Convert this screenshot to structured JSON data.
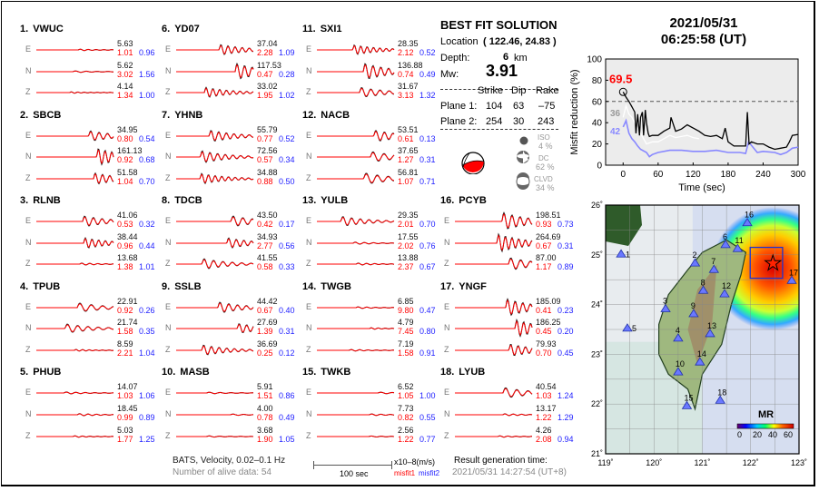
{
  "stations": [
    {
      "num": "1.",
      "name": "VWUC",
      "comps": [
        {
          "c": "E",
          "amp": "5.63",
          "m1": "1.01",
          "m2": "0.96"
        },
        {
          "c": "N",
          "amp": "5.62",
          "m1": "3.02",
          "m2": "1.56"
        },
        {
          "c": "Z",
          "amp": "4.14",
          "m1": "1.34",
          "m2": "1.00"
        }
      ]
    },
    {
      "num": "2.",
      "name": "SBCB",
      "comps": [
        {
          "c": "E",
          "amp": "34.95",
          "m1": "0.80",
          "m2": "0.54"
        },
        {
          "c": "N",
          "amp": "161.13",
          "m1": "0.92",
          "m2": "0.68"
        },
        {
          "c": "Z",
          "amp": "51.58",
          "m1": "1.04",
          "m2": "0.70"
        }
      ]
    },
    {
      "num": "3.",
      "name": "RLNB",
      "comps": [
        {
          "c": "E",
          "amp": "41.06",
          "m1": "0.53",
          "m2": "0.32"
        },
        {
          "c": "N",
          "amp": "38.44",
          "m1": "0.96",
          "m2": "0.44"
        },
        {
          "c": "Z",
          "amp": "13.68",
          "m1": "1.38",
          "m2": "1.01"
        }
      ]
    },
    {
      "num": "4.",
      "name": "TPUB",
      "comps": [
        {
          "c": "E",
          "amp": "22.91",
          "m1": "0.92",
          "m2": "0.26"
        },
        {
          "c": "N",
          "amp": "21.74",
          "m1": "1.58",
          "m2": "0.35"
        },
        {
          "c": "Z",
          "amp": "8.59",
          "m1": "2.21",
          "m2": "1.04"
        }
      ]
    },
    {
      "num": "5.",
      "name": "PHUB",
      "comps": [
        {
          "c": "E",
          "amp": "14.07",
          "m1": "1.03",
          "m2": "1.06"
        },
        {
          "c": "N",
          "amp": "18.45",
          "m1": "0.99",
          "m2": "0.89"
        },
        {
          "c": "Z",
          "amp": "5.03",
          "m1": "1.77",
          "m2": "1.25"
        }
      ]
    },
    {
      "num": "6.",
      "name": "YD07",
      "comps": [
        {
          "c": "E",
          "amp": "37.04",
          "m1": "2.28",
          "m2": "1.09"
        },
        {
          "c": "N",
          "amp": "117.53",
          "m1": "0.47",
          "m2": "0.28"
        },
        {
          "c": "Z",
          "amp": "33.02",
          "m1": "1.95",
          "m2": "1.02"
        }
      ]
    },
    {
      "num": "7.",
      "name": "YHNB",
      "comps": [
        {
          "c": "E",
          "amp": "55.79",
          "m1": "0.77",
          "m2": "0.52"
        },
        {
          "c": "N",
          "amp": "72.56",
          "m1": "0.57",
          "m2": "0.34"
        },
        {
          "c": "Z",
          "amp": "34.88",
          "m1": "0.88",
          "m2": "0.50"
        }
      ]
    },
    {
      "num": "8.",
      "name": "TDCB",
      "comps": [
        {
          "c": "E",
          "amp": "43.50",
          "m1": "0.42",
          "m2": "0.17"
        },
        {
          "c": "N",
          "amp": "34.93",
          "m1": "2.77",
          "m2": "0.56"
        },
        {
          "c": "Z",
          "amp": "41.55",
          "m1": "0.58",
          "m2": "0.33"
        }
      ]
    },
    {
      "num": "9.",
      "name": "SSLB",
      "comps": [
        {
          "c": "E",
          "amp": "44.42",
          "m1": "0.67",
          "m2": "0.40"
        },
        {
          "c": "N",
          "amp": "27.69",
          "m1": "1.39",
          "m2": "0.31"
        },
        {
          "c": "Z",
          "amp": "36.69",
          "m1": "0.25",
          "m2": "0.12"
        }
      ]
    },
    {
      "num": "10.",
      "name": "MASB",
      "comps": [
        {
          "c": "E",
          "amp": "5.91",
          "m1": "1.51",
          "m2": "0.86"
        },
        {
          "c": "N",
          "amp": "4.00",
          "m1": "0.78",
          "m2": "0.49"
        },
        {
          "c": "Z",
          "amp": "3.68",
          "m1": "1.90",
          "m2": "1.05"
        }
      ]
    },
    {
      "num": "11.",
      "name": "SXI1",
      "comps": [
        {
          "c": "E",
          "amp": "28.35",
          "m1": "2.12",
          "m2": "0.52"
        },
        {
          "c": "N",
          "amp": "136.88",
          "m1": "0.74",
          "m2": "0.49"
        },
        {
          "c": "Z",
          "amp": "31.67",
          "m1": "3.13",
          "m2": "1.32"
        }
      ]
    },
    {
      "num": "12.",
      "name": "NACB",
      "comps": [
        {
          "c": "E",
          "amp": "53.51",
          "m1": "0.61",
          "m2": "0.13"
        },
        {
          "c": "N",
          "amp": "37.65",
          "m1": "1.27",
          "m2": "0.31"
        },
        {
          "c": "Z",
          "amp": "56.81",
          "m1": "1.07",
          "m2": "0.71"
        }
      ]
    },
    {
      "num": "13.",
      "name": "YULB",
      "comps": [
        {
          "c": "E",
          "amp": "29.35",
          "m1": "2.01",
          "m2": "0.70"
        },
        {
          "c": "N",
          "amp": "17.55",
          "m1": "2.02",
          "m2": "0.76"
        },
        {
          "c": "Z",
          "amp": "13.88",
          "m1": "2.37",
          "m2": "0.67"
        }
      ]
    },
    {
      "num": "14.",
      "name": "TWGB",
      "comps": [
        {
          "c": "E",
          "amp": "6.85",
          "m1": "9.80",
          "m2": "0.47"
        },
        {
          "c": "N",
          "amp": "4.79",
          "m1": "7.45",
          "m2": "0.80"
        },
        {
          "c": "Z",
          "amp": "7.19",
          "m1": "1.58",
          "m2": "0.91"
        }
      ]
    },
    {
      "num": "15.",
      "name": "TWKB",
      "comps": [
        {
          "c": "E",
          "amp": "6.52",
          "m1": "1.05",
          "m2": "1.00"
        },
        {
          "c": "N",
          "amp": "7.73",
          "m1": "0.82",
          "m2": "0.55"
        },
        {
          "c": "Z",
          "amp": "2.56",
          "m1": "1.22",
          "m2": "0.77"
        }
      ]
    },
    {
      "num": "16.",
      "name": "PCYB",
      "comps": [
        {
          "c": "E",
          "amp": "198.51",
          "m1": "0.93",
          "m2": "0.73"
        },
        {
          "c": "N",
          "amp": "264.69",
          "m1": "0.67",
          "m2": "0.31"
        },
        {
          "c": "Z",
          "amp": "87.00",
          "m1": "1.17",
          "m2": "0.89"
        }
      ]
    },
    {
      "num": "17.",
      "name": "YNGF",
      "comps": [
        {
          "c": "E",
          "amp": "185.09",
          "m1": "0.41",
          "m2": "0.23"
        },
        {
          "c": "N",
          "amp": "186.25",
          "m1": "0.45",
          "m2": "0.20"
        },
        {
          "c": "Z",
          "amp": "79.93",
          "m1": "0.70",
          "m2": "0.45"
        }
      ]
    },
    {
      "num": "18.",
      "name": "LYUB",
      "comps": [
        {
          "c": "E",
          "amp": "40.54",
          "m1": "1.03",
          "m2": "1.24"
        },
        {
          "c": "N",
          "amp": "13.17",
          "m1": "1.22",
          "m2": "1.29"
        },
        {
          "c": "Z",
          "amp": "4.26",
          "m1": "2.08",
          "m2": "0.94"
        }
      ]
    }
  ],
  "footer": {
    "network": "BATS, Velocity, 0.02–0.1 Hz",
    "alive": "Number of alive data: 54",
    "scale": "100 sec",
    "units": "x10–8(m/s)",
    "misfit1": "misfit1",
    "misfit2": "misfit2",
    "gen_label": "Result generation time:",
    "gen_time": "2021/05/31 14:27:54 (UT+8)"
  },
  "solution": {
    "title": "BEST FIT SOLUTION",
    "location_label": "Location",
    "location": "( 122.46,  24.83 )",
    "depth_label": "Depth:",
    "depth": "6",
    "depth_unit": "km",
    "mw_label": "Mw:",
    "mw": "3.91",
    "headers": [
      "Strike",
      "Dip",
      "Rake"
    ],
    "planes": [
      {
        "label": "Plane 1:",
        "strike": "104",
        "dip": "63",
        "rake": "–75"
      },
      {
        "label": "Plane 2:",
        "strike": "254",
        "dip": "30",
        "rake": "243"
      }
    ],
    "components": [
      {
        "name": "ISO",
        "pct": "4 %"
      },
      {
        "name": "DC",
        "pct": "62 %"
      },
      {
        "name": "CLVD",
        "pct": "34 %"
      }
    ],
    "beachball_color": "#ff0000"
  },
  "event": {
    "date": "2021/05/31",
    "time": "06:25:58  (UT)"
  },
  "chart_data": {
    "type": "line",
    "xlabel": "Time (sec)",
    "ylabel": "Misfit reduction (%)",
    "xlim": [
      -30,
      300
    ],
    "ylim": [
      0,
      100
    ],
    "xticks": [
      0,
      60,
      120,
      180,
      240,
      300
    ],
    "yticks": [
      0,
      20,
      40,
      60,
      80,
      100
    ],
    "threshold": 60,
    "best_value": "69.5",
    "labels": [
      {
        "text": "36",
        "color": "#999999"
      },
      {
        "text": "42",
        "color": "#8888ff"
      }
    ],
    "series": [
      {
        "color": "#000000",
        "x": [
          0,
          5,
          10,
          15,
          20,
          22,
          25,
          28,
          30,
          33,
          35,
          38,
          40,
          43,
          45,
          50,
          60,
          70,
          80,
          82,
          90,
          100,
          110,
          120,
          130,
          140,
          150,
          160,
          170,
          175,
          180,
          185,
          190,
          200,
          210,
          213,
          216,
          220,
          230,
          240,
          250,
          260,
          270,
          280,
          285,
          290,
          300
        ],
        "y": [
          69,
          64,
          60,
          55,
          50,
          30,
          48,
          28,
          45,
          50,
          28,
          52,
          40,
          30,
          27,
          28,
          28,
          32,
          35,
          45,
          32,
          34,
          38,
          35,
          32,
          28,
          27,
          28,
          25,
          35,
          22,
          20,
          18,
          18,
          18,
          50,
          20,
          22,
          20,
          20,
          17,
          15,
          16,
          17,
          22,
          28,
          29
        ]
      },
      {
        "color": "#ffffff",
        "x": [
          0,
          5,
          10,
          15,
          20,
          25,
          30,
          40,
          50,
          60,
          70,
          80,
          90,
          100,
          110,
          120,
          130
        ],
        "y": [
          45,
          56,
          48,
          45,
          40,
          35,
          30,
          20,
          22,
          22,
          25,
          28,
          26,
          27,
          28,
          26,
          25
        ]
      },
      {
        "color": "#8888ff",
        "x": [
          0,
          5,
          10,
          15,
          20,
          25,
          30,
          40,
          45,
          50,
          60,
          80,
          100,
          120,
          140,
          160,
          180,
          200,
          210,
          215,
          230,
          240,
          260,
          270,
          280,
          290,
          300
        ],
        "y": [
          36,
          42,
          30,
          25,
          22,
          18,
          15,
          12,
          8,
          10,
          12,
          14,
          14,
          13,
          13,
          14,
          12,
          12,
          11,
          22,
          12,
          13,
          12,
          10,
          12,
          16,
          17
        ]
      }
    ]
  },
  "map": {
    "lon_ticks": [
      "119˚",
      "120˚",
      "121˚",
      "122˚",
      "123˚"
    ],
    "lat_ticks": [
      "26˚",
      "25˚",
      "24˚",
      "23˚",
      "22˚",
      "21˚"
    ],
    "epicenter": {
      "lon": 122.46,
      "lat": 24.83
    },
    "station_markers": [
      {
        "id": "1",
        "lon": 119.32,
        "lat": 25.01
      },
      {
        "id": "2",
        "lon": 120.85,
        "lat": 24.83
      },
      {
        "id": "3",
        "lon": 120.24,
        "lat": 23.91
      },
      {
        "id": "4",
        "lon": 120.5,
        "lat": 23.32
      },
      {
        "id": "5",
        "lon": 119.45,
        "lat": 23.52
      },
      {
        "id": "6",
        "lon": 121.48,
        "lat": 25.2
      },
      {
        "id": "7",
        "lon": 121.24,
        "lat": 24.7
      },
      {
        "id": "8",
        "lon": 121.02,
        "lat": 24.28
      },
      {
        "id": "9",
        "lon": 120.82,
        "lat": 23.81
      },
      {
        "id": "10",
        "lon": 120.5,
        "lat": 22.64
      },
      {
        "id": "11",
        "lon": 121.73,
        "lat": 25.12
      },
      {
        "id": "12",
        "lon": 121.46,
        "lat": 24.21
      },
      {
        "id": "13",
        "lon": 121.16,
        "lat": 23.41
      },
      {
        "id": "14",
        "lon": 120.95,
        "lat": 22.84
      },
      {
        "id": "15",
        "lon": 120.68,
        "lat": 21.96
      },
      {
        "id": "16",
        "lon": 121.93,
        "lat": 25.64
      },
      {
        "id": "17",
        "lon": 122.85,
        "lat": 24.48
      },
      {
        "id": "18",
        "lon": 121.37,
        "lat": 22.07
      }
    ],
    "colorbar_title": "MR",
    "colorbar_ticks": [
      "0",
      "20",
      "40",
      "60"
    ]
  }
}
